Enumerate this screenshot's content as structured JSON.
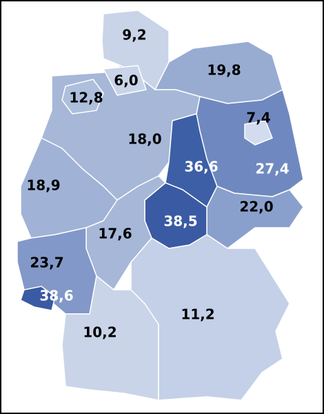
{
  "regions": [
    {
      "label": "9,2",
      "color": "#c9d4e8",
      "text_color": "#000000"
    },
    {
      "label": "6,0",
      "color": "#c9d4e8",
      "text_color": "#000000"
    },
    {
      "label": "19,8",
      "color": "#98acd2",
      "text_color": "#000000"
    },
    {
      "label": "12,8",
      "color": "#aebfdc",
      "text_color": "#000000"
    },
    {
      "label": "18,0",
      "color": "#a6b7d8",
      "text_color": "#000000"
    },
    {
      "label": "7,4",
      "color": "#d3dcee",
      "text_color": "#000000"
    },
    {
      "label": "36,6",
      "color": "#3d5fa6",
      "text_color": "#ffffff"
    },
    {
      "label": "27,4",
      "color": "#6f89c0",
      "text_color": "#ffffff"
    },
    {
      "label": "18,9",
      "color": "#a0b2d6",
      "text_color": "#000000"
    },
    {
      "label": "22,0",
      "color": "#8aa0cc",
      "text_color": "#000000"
    },
    {
      "label": "17,6",
      "color": "#a6b7d8",
      "text_color": "#000000"
    },
    {
      "label": "38,5",
      "color": "#3a5aa3",
      "text_color": "#ffffff"
    },
    {
      "label": "23,7",
      "color": "#8298c8",
      "text_color": "#000000"
    },
    {
      "label": "38,6",
      "color": "#3a5aa3",
      "text_color": "#ffffff"
    },
    {
      "label": "10,2",
      "color": "#c9d4e8",
      "text_color": "#000000"
    },
    {
      "label": "11,2",
      "color": "#c4d0e7",
      "text_color": "#000000"
    }
  ]
}
